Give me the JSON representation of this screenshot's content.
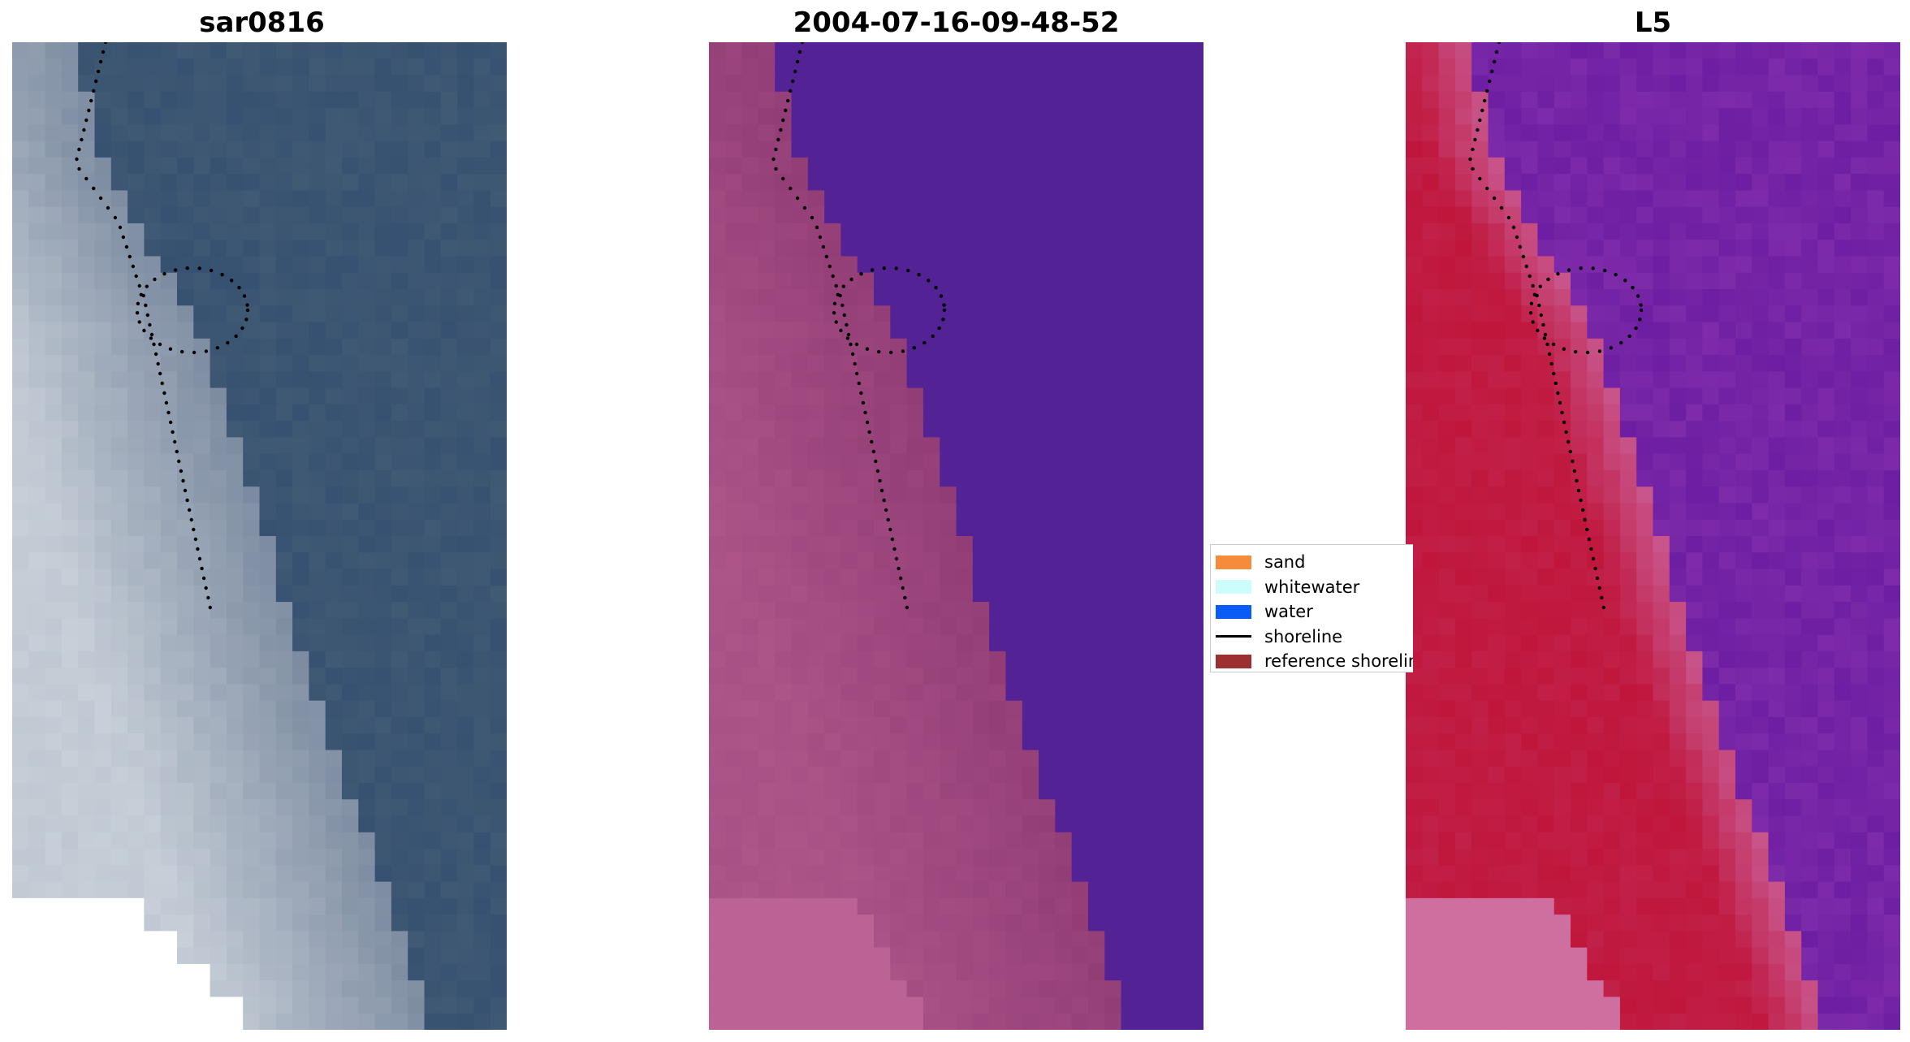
{
  "panels": [
    {
      "title": "sar0816",
      "kind": "rgb"
    },
    {
      "title": "2004-07-16-09-48-52",
      "kind": "classified"
    },
    {
      "title": "L5",
      "kind": "index"
    }
  ],
  "legend": {
    "items": [
      {
        "label": "sand",
        "color": "#f48c3c",
        "type": "patch"
      },
      {
        "label": "whitewater",
        "color": "#ccfcfc",
        "type": "patch"
      },
      {
        "label": "water",
        "color": "#0a5cf5",
        "type": "patch"
      },
      {
        "label": "shoreline",
        "color": "#000000",
        "type": "line"
      },
      {
        "label": "reference shoreline",
        "color": "#9c3030",
        "type": "patch"
      }
    ]
  },
  "colors": {
    "rgb_water": "#2f4a6e",
    "rgb_land": "#c7cfd8",
    "classified_water": "#532396",
    "classified_land": "#8a3570",
    "classified_bright_land": "#bb6394",
    "index_water": "#6a1ba0",
    "index_land": "#c0163c",
    "index_bright_land": "#cf6f9f",
    "shoreline_dots": "#000000"
  }
}
